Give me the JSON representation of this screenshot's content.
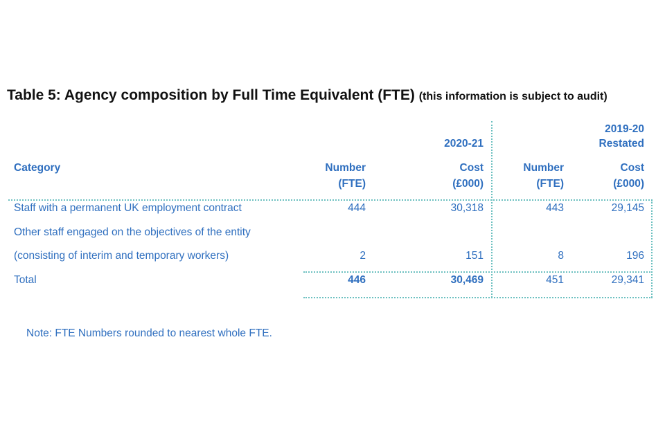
{
  "title": {
    "main": "Table 5: Agency composition by Full Time Equivalent (FTE)",
    "sub": "(this information is subject to audit)"
  },
  "table": {
    "period_current": "2020-21",
    "period_prior_line1": "2019-20",
    "period_prior_line2": "Restated",
    "headers": {
      "category": "Category",
      "number_l1": "Number",
      "number_l2": "(FTE)",
      "cost_l1": "Cost",
      "cost_l2": "(£000)"
    },
    "rows": [
      {
        "category": "Staff with a permanent UK employment contract",
        "num_cur": "444",
        "cost_cur": "30,318",
        "num_prior": "443",
        "cost_prior": "29,145"
      },
      {
        "category_l1": "Other staff engaged on the objectives of the entity",
        "category_l2": "(consisting of interim and temporary workers)",
        "num_cur": "2",
        "cost_cur": "151",
        "num_prior": "8",
        "cost_prior": "196"
      }
    ],
    "total": {
      "label": "Total",
      "num_cur": "446",
      "cost_cur": "30,469",
      "num_prior": "451",
      "cost_prior": "29,341"
    }
  },
  "note": "Note: FTE Numbers rounded to nearest whole FTE."
}
